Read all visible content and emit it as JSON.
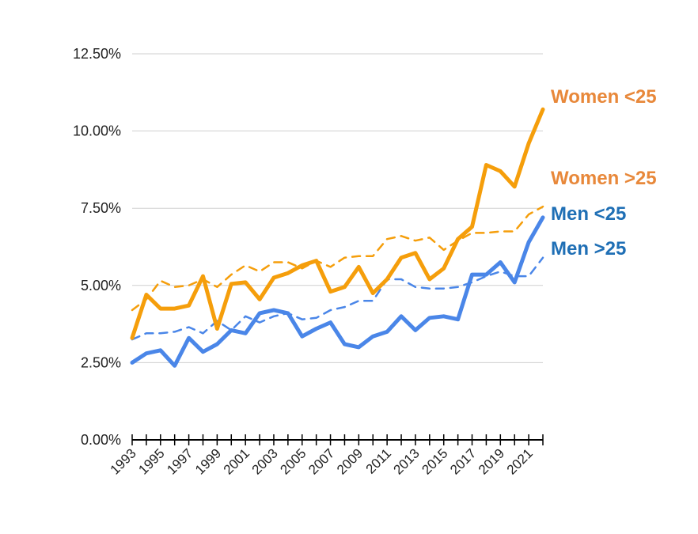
{
  "chart_data": {
    "type": "line",
    "x": [
      1993,
      1994,
      1995,
      1996,
      1997,
      1998,
      1999,
      2000,
      2001,
      2002,
      2003,
      2004,
      2005,
      2006,
      2007,
      2008,
      2009,
      2010,
      2011,
      2012,
      2013,
      2014,
      2015,
      2016,
      2017,
      2018,
      2019,
      2020,
      2021,
      2022
    ],
    "x_tick_labels": [
      "1993",
      "1995",
      "1997",
      "1999",
      "2001",
      "2003",
      "2005",
      "2007",
      "2009",
      "2011",
      "2013",
      "2015",
      "2017",
      "2019",
      "2021"
    ],
    "y_tick_labels": [
      "0.00%",
      "2.50%",
      "5.00%",
      "7.50%",
      "10.00%",
      "12.50%"
    ],
    "y_ticks": [
      0,
      2.5,
      5,
      7.5,
      10,
      12.5
    ],
    "ylim": [
      0,
      12.5
    ],
    "grid": true,
    "legend": "line-end labels, right",
    "series": [
      {
        "name": "Women <25",
        "color": "#F59E0B",
        "label_color": "#E8883A",
        "style": "solid",
        "values": [
          3.3,
          4.7,
          4.25,
          4.25,
          4.35,
          5.3,
          3.6,
          5.05,
          5.1,
          4.55,
          5.25,
          5.4,
          5.65,
          5.8,
          4.8,
          4.95,
          5.6,
          4.75,
          5.2,
          5.9,
          6.05,
          5.2,
          5.55,
          6.5,
          6.9,
          8.9,
          8.7,
          8.2,
          9.6,
          10.7
        ]
      },
      {
        "name": "Women >25",
        "color": "#F59E0B",
        "label_color": "#E8883A",
        "style": "dashed",
        "values": [
          4.2,
          4.55,
          5.15,
          4.95,
          5.0,
          5.2,
          4.95,
          5.35,
          5.65,
          5.45,
          5.75,
          5.75,
          5.55,
          5.8,
          5.6,
          5.9,
          5.95,
          5.95,
          6.5,
          6.6,
          6.45,
          6.55,
          6.15,
          6.45,
          6.7,
          6.7,
          6.75,
          6.75,
          7.3,
          7.55
        ]
      },
      {
        "name": "Men <25",
        "color": "#4A86E8",
        "label_color": "#1F6FB5",
        "style": "solid",
        "values": [
          2.5,
          2.8,
          2.9,
          2.4,
          3.3,
          2.85,
          3.1,
          3.55,
          3.45,
          4.1,
          4.2,
          4.1,
          3.35,
          3.6,
          3.8,
          3.1,
          3.0,
          3.35,
          3.5,
          4.0,
          3.55,
          3.95,
          4.0,
          3.9,
          5.35,
          5.35,
          5.75,
          5.1,
          6.4,
          7.2
        ]
      },
      {
        "name": "Men >25",
        "color": "#4A86E8",
        "label_color": "#1F6FB5",
        "style": "dashed",
        "values": [
          3.25,
          3.45,
          3.45,
          3.5,
          3.65,
          3.45,
          3.85,
          3.55,
          4.0,
          3.8,
          4.0,
          4.1,
          3.9,
          3.95,
          4.2,
          4.3,
          4.5,
          4.5,
          5.2,
          5.2,
          4.95,
          4.9,
          4.9,
          4.95,
          5.1,
          5.3,
          5.45,
          5.3,
          5.3,
          5.9
        ]
      }
    ]
  }
}
